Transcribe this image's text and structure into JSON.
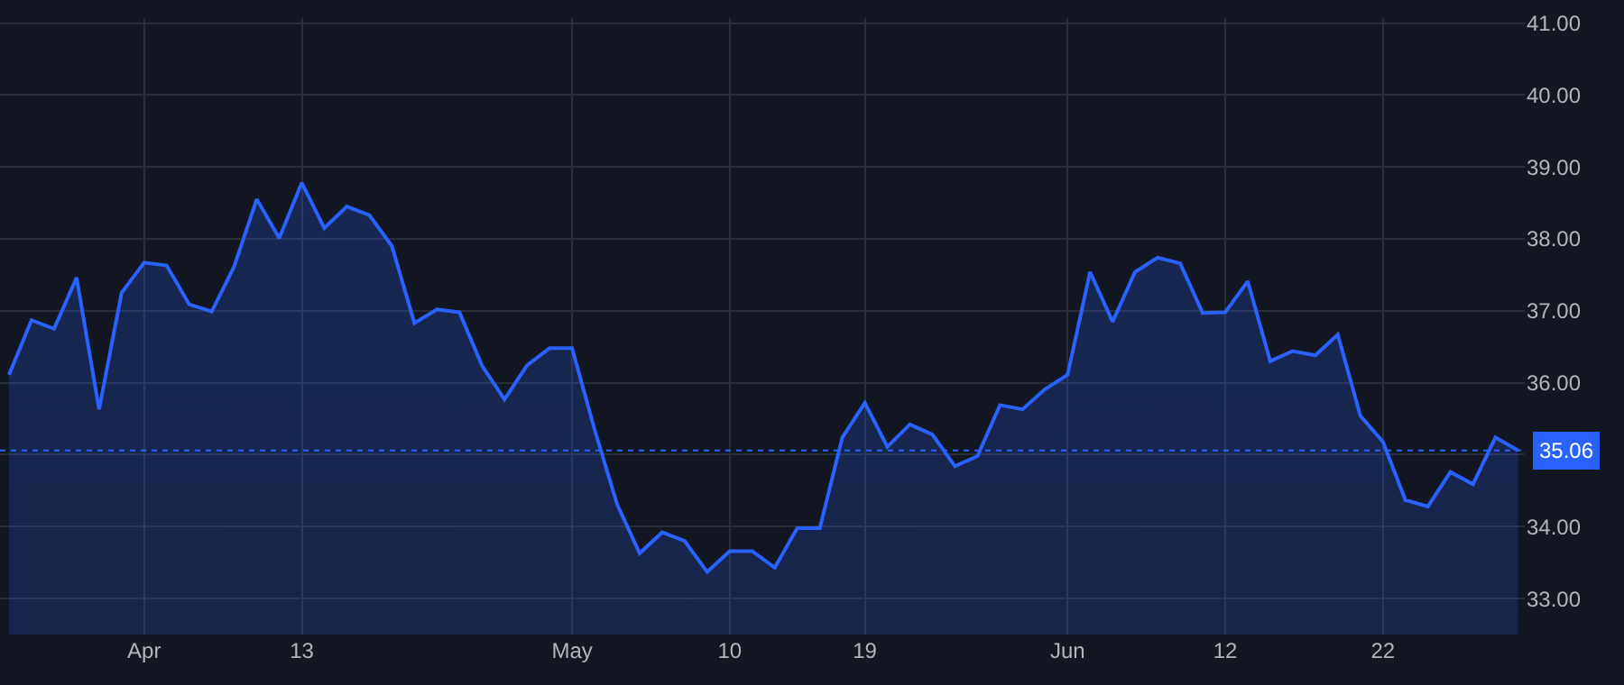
{
  "chart_data": {
    "type": "area",
    "categories": [
      null,
      null,
      null,
      null,
      null,
      null,
      "Apr",
      null,
      null,
      null,
      null,
      null,
      null,
      "13",
      null,
      null,
      null,
      null,
      null,
      null,
      null,
      null,
      null,
      null,
      null,
      "May",
      null,
      null,
      null,
      null,
      null,
      null,
      "10",
      null,
      null,
      null,
      null,
      null,
      "19",
      null,
      null,
      null,
      null,
      null,
      null,
      null,
      null,
      "Jun",
      null,
      null,
      null,
      null,
      null,
      null,
      "12",
      null,
      null,
      null,
      null,
      null,
      null,
      "22",
      null,
      null,
      null,
      null,
      null,
      null
    ],
    "series": [
      {
        "color": "#2962ff",
        "values": [
          36.11,
          36.87,
          36.75,
          37.46,
          35.63,
          37.25,
          37.67,
          37.63,
          37.09,
          36.99,
          37.62,
          38.55,
          38.01,
          38.78,
          38.15,
          38.45,
          38.33,
          37.9,
          36.83,
          37.02,
          36.98,
          36.24,
          35.77,
          36.24,
          36.48,
          36.48,
          35.35,
          34.31,
          33.63,
          33.92,
          33.8,
          33.37,
          33.66,
          33.66,
          33.43,
          33.98,
          33.98,
          35.24,
          35.72,
          35.11,
          35.42,
          35.28,
          34.84,
          34.98,
          35.69,
          35.63,
          35.91,
          36.11,
          37.54,
          36.85,
          37.54,
          37.74,
          37.66,
          36.97,
          36.98,
          37.41,
          36.3,
          36.44,
          36.38,
          36.67,
          35.54,
          35.18,
          34.37,
          34.28,
          34.76,
          34.59,
          35.24,
          35.06
        ]
      }
    ],
    "ylim": [
      32.5,
      41.07
    ],
    "yticks": [
      {
        "value": 33,
        "label": "33.00"
      },
      {
        "value": 34,
        "label": "34.00"
      },
      {
        "value": 35,
        "label": null
      },
      {
        "value": 36,
        "label": "36.00"
      },
      {
        "value": 37,
        "label": "37.00"
      },
      {
        "value": 38,
        "label": "38.00"
      },
      {
        "value": 39,
        "label": "39.00"
      },
      {
        "value": 40,
        "label": "40.00"
      },
      {
        "value": 41,
        "label": "41.00"
      }
    ],
    "ref_lines": [
      {
        "axis": "y",
        "value": 35.06,
        "label": "35.06",
        "color": "#2962ff",
        "line_style": "dotted"
      }
    ],
    "grid": true,
    "line_style": "solid",
    "marker": "none"
  }
}
